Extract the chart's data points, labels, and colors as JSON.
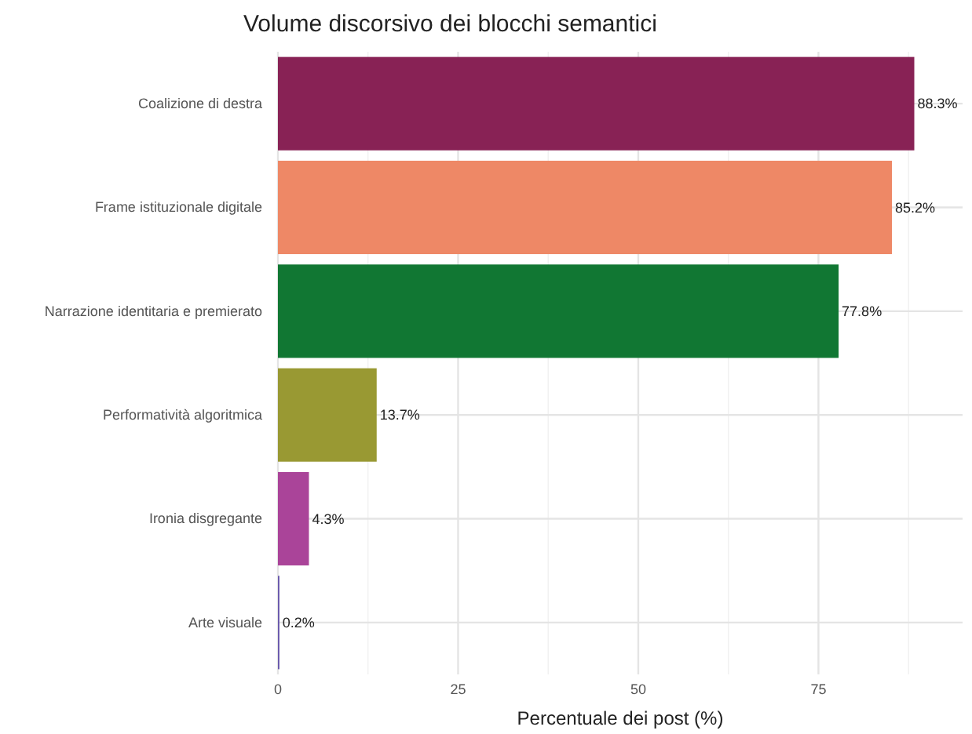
{
  "chart_data": {
    "type": "bar",
    "orientation": "horizontal",
    "title": "Volume discorsivo dei blocchi semantici",
    "xlabel": "Percentuale dei post (%)",
    "categories": [
      "Coalizione di destra",
      "Frame istituzionale digitale",
      "Narrazione identitaria e premierato",
      "Performatività algoritmica",
      "Ironia disgregante",
      "Arte visuale"
    ],
    "values": [
      88.3,
      85.2,
      77.8,
      13.7,
      4.3,
      0.2
    ],
    "colors": [
      "#882255",
      "#ee8866",
      "#117733",
      "#999933",
      "#aa4499",
      "#6655aa"
    ],
    "value_labels": [
      "88.3%",
      "85.2%",
      "77.8%",
      "13.7%",
      "4.3%",
      "0.2%"
    ],
    "xlim": [
      0,
      95
    ],
    "xticks": [
      0,
      {
        "value": 12.5,
        "label": null
      },
      25,
      {
        "value": 37.5,
        "label": null
      },
      50,
      {
        "value": 62.5,
        "label": null
      },
      75,
      {
        "value": 87.5,
        "label": null
      }
    ],
    "grid": true
  }
}
